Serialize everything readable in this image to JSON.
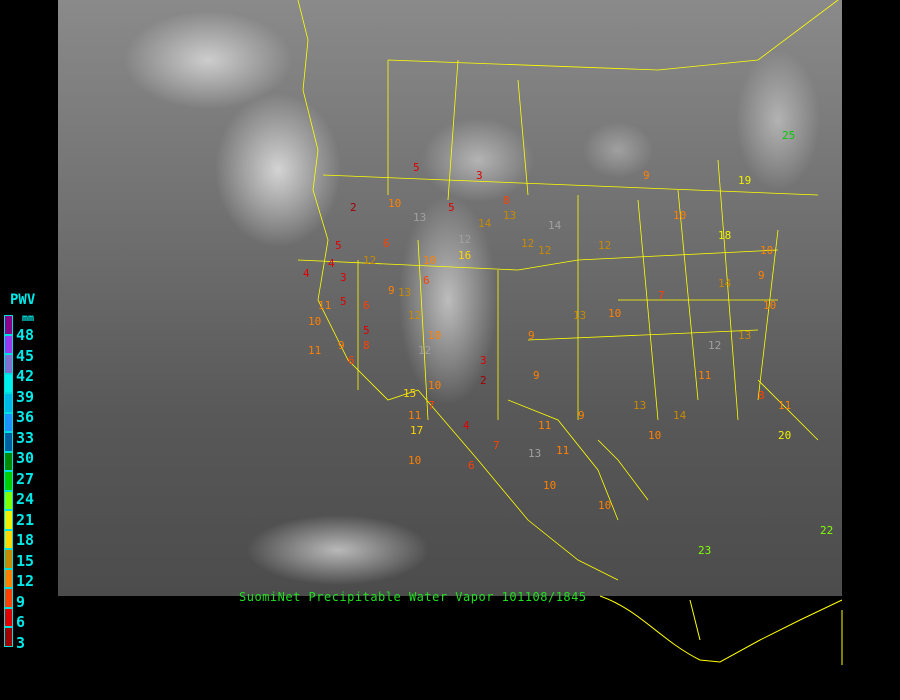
{
  "caption": "SuomiNet Precipitable Water Vapor 101108/1845",
  "legend": {
    "title": "PWV",
    "unit": "mm",
    "labels": [
      "48",
      "45",
      "42",
      "39",
      "36",
      "33",
      "30",
      "27",
      "24",
      "21",
      "18",
      "15",
      "12",
      "9",
      "6",
      "3"
    ],
    "colors": [
      "#8b008b",
      "#9a3af0",
      "#8070d0",
      "#00f0f0",
      "#00b8e8",
      "#2090ff",
      "#005f9f",
      "#008800",
      "#00cc00",
      "#80ff00",
      "#f0f000",
      "#ffd700",
      "#c88a00",
      "#ff8000",
      "#ff4000",
      "#e00000",
      "#a00000"
    ]
  },
  "map": {
    "background": "GOES infrared satellite imagery (grayscale)",
    "boundary_color": "#ffff00",
    "stations": [
      "5",
      "2",
      "10",
      "13",
      "5",
      "14",
      "12",
      "5",
      "6",
      "10",
      "13",
      "16",
      "4",
      "3",
      "5",
      "6",
      "9",
      "12",
      "11",
      "5",
      "4",
      "10",
      "12",
      "6",
      "9",
      "13",
      "11",
      "10",
      "8",
      "6",
      "12",
      "10",
      "11",
      "15",
      "7",
      "10",
      "3",
      "2",
      "6",
      "4",
      "9",
      "11",
      "10",
      "13",
      "12",
      "14",
      "10",
      "12",
      "9",
      "11",
      "7",
      "10",
      "9",
      "13",
      "10",
      "14",
      "11",
      "12",
      "13",
      "9",
      "10",
      "8",
      "11",
      "10",
      "20",
      "23",
      "25",
      "14",
      "22",
      "3",
      "8",
      "12",
      "9",
      "17",
      "7",
      "13",
      "10",
      "18",
      "19"
    ]
  }
}
